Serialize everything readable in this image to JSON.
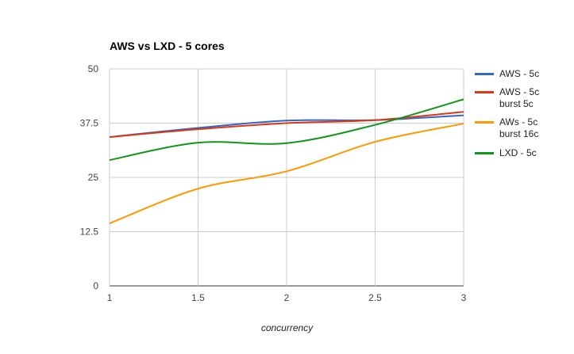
{
  "chart_data": {
    "type": "line",
    "title": "AWS vs LXD - 5 cores",
    "xlabel": "concurrency",
    "ylabel": "",
    "x": [
      1,
      1.5,
      2,
      2.5,
      3
    ],
    "xlim": [
      1,
      3
    ],
    "ylim": [
      0,
      50
    ],
    "xticks": [
      "1",
      "1.5",
      "2",
      "2.5",
      "3"
    ],
    "xtick_values": [
      1,
      1.5,
      2,
      2.5,
      3
    ],
    "yticks": [
      "0",
      "12.5",
      "25",
      "37.5",
      "50"
    ],
    "ytick_values": [
      0,
      12.5,
      25,
      37.5,
      50
    ],
    "grid": true,
    "legend_position": "right",
    "series": [
      {
        "name": "AWS - 5c",
        "legend_lines": [
          "AWS - 5c"
        ],
        "color": "#3366cc",
        "values": [
          34.3,
          36.4,
          38.1,
          38.2,
          39.3
        ]
      },
      {
        "name": "AWS - 5c burst 5c",
        "legend_lines": [
          "AWS - 5c",
          "burst 5c"
        ],
        "color": "#dc3912",
        "values": [
          34.3,
          36.1,
          37.5,
          38.2,
          40.1
        ]
      },
      {
        "name": "AWs - 5c burst 16c",
        "legend_lines": [
          "AWs - 5c",
          "burst 16c"
        ],
        "color": "#ff9900",
        "values": [
          14.4,
          22.4,
          26.4,
          33.2,
          37.4
        ]
      },
      {
        "name": "LXD - 5c",
        "legend_lines": [
          "LXD - 5c"
        ],
        "color": "#109618",
        "values": [
          29.0,
          33.0,
          32.9,
          37.1,
          43.0
        ]
      }
    ]
  }
}
